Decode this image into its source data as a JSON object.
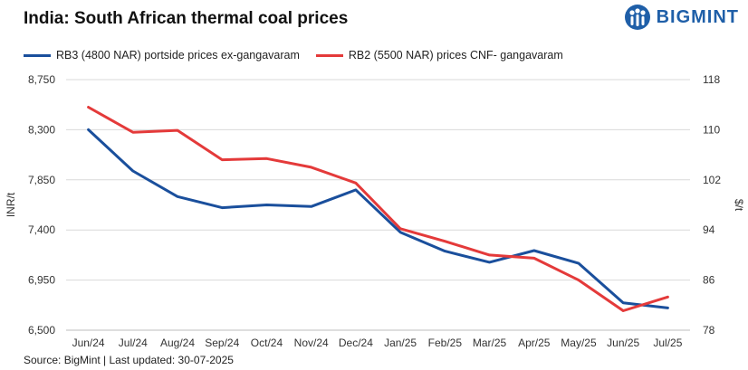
{
  "title": "India: South African thermal coal prices",
  "logo": {
    "text": "BIGMINT",
    "icon": "bigmint-logo-icon"
  },
  "source": "Source: BigMint | Last updated: 30-07-2025",
  "colors": {
    "rb3": "#1a4f9c",
    "rb2": "#e43a3a"
  },
  "chart_data": {
    "type": "line",
    "title": "India: South African thermal coal prices",
    "categories": [
      "Jun/24",
      "Jul/24",
      "Aug/24",
      "Sep/24",
      "Oct/24",
      "Nov/24",
      "Dec/24",
      "Jan/25",
      "Feb/25",
      "Mar/25",
      "Apr/25",
      "May/25",
      "Jun/25",
      "Jul/25"
    ],
    "ylabel_left": "INR/t",
    "ylabel_right": "$/t",
    "ylim_left": [
      6500,
      8750
    ],
    "ylim_right": [
      78,
      118
    ],
    "yticks_left": [
      "8,750",
      "8,300",
      "7,850",
      "7,400",
      "6,950",
      "6,500"
    ],
    "yticks_right": [
      "118",
      "110",
      "102",
      "94",
      "86",
      "78"
    ],
    "grid": true,
    "legend_position": "top-left",
    "series": [
      {
        "name": "RB3 (4800 NAR) portside prices ex-gangavaram",
        "axis": "left",
        "color": "#1a4f9c",
        "values": [
          8300,
          7930,
          7700,
          7600,
          7625,
          7610,
          7760,
          7380,
          7210,
          7110,
          7215,
          7100,
          6745,
          6700
        ]
      },
      {
        "name": "RB2 (5500 NAR) prices CNF- gangavaram",
        "axis": "right",
        "color": "#e43a3a",
        "values": [
          113.6,
          109.6,
          109.9,
          105.2,
          105.4,
          104.0,
          101.5,
          94.2,
          92.2,
          90.0,
          89.5,
          86.0,
          81.1,
          83.3
        ]
      }
    ]
  }
}
